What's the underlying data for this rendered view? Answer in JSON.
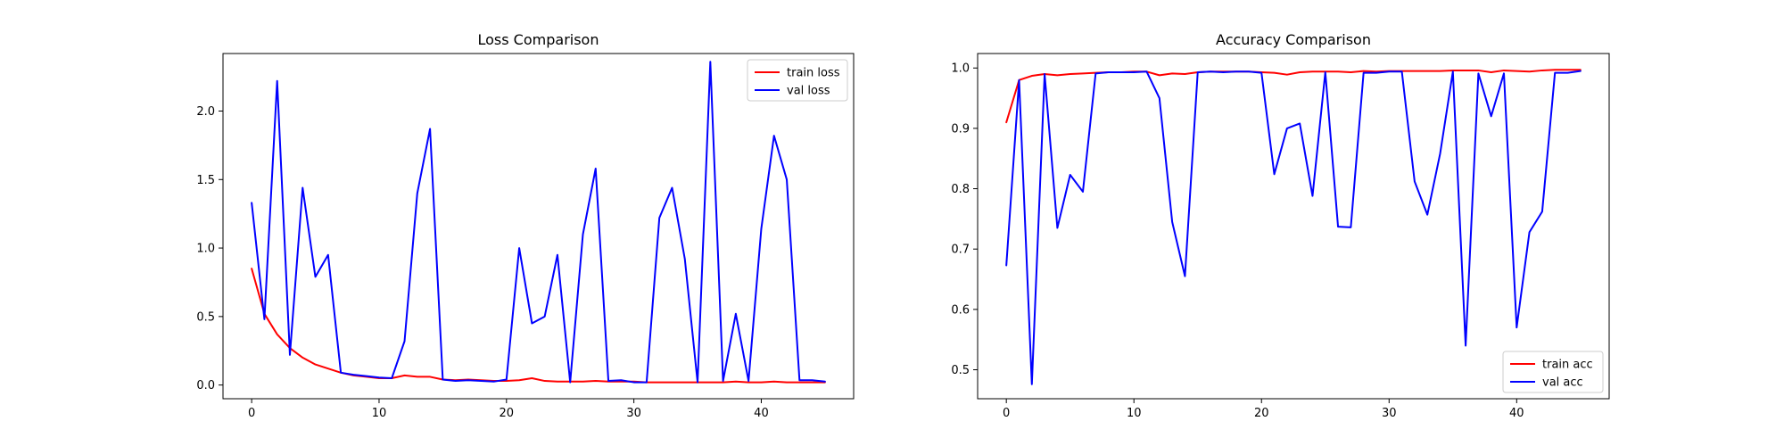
{
  "chart_data": [
    {
      "type": "line",
      "title": "Loss Comparison",
      "xlabel": "",
      "ylabel": "",
      "xlim": [
        -2.25,
        47.25
      ],
      "ylim": [
        -0.1,
        2.42
      ],
      "xticks": [
        0,
        10,
        20,
        30,
        40
      ],
      "yticks": [
        0.0,
        0.5,
        1.0,
        1.5,
        2.0
      ],
      "xtick_labels": [
        "0",
        "10",
        "20",
        "30",
        "40"
      ],
      "ytick_labels": [
        "0.0",
        "0.5",
        "1.0",
        "1.5",
        "2.0"
      ],
      "grid": false,
      "legend": "top-right",
      "series": [
        {
          "name": "train loss",
          "color": "#ff0000",
          "x": [
            0,
            1,
            2,
            3,
            4,
            5,
            6,
            7,
            8,
            9,
            10,
            11,
            12,
            13,
            14,
            15,
            16,
            17,
            18,
            19,
            20,
            21,
            22,
            23,
            24,
            25,
            26,
            27,
            28,
            29,
            30,
            31,
            32,
            33,
            34,
            35,
            36,
            37,
            38,
            39,
            40,
            41,
            42,
            43,
            44,
            45
          ],
          "values": [
            0.85,
            0.52,
            0.37,
            0.27,
            0.2,
            0.15,
            0.12,
            0.09,
            0.07,
            0.06,
            0.05,
            0.05,
            0.07,
            0.06,
            0.06,
            0.04,
            0.035,
            0.04,
            0.035,
            0.03,
            0.03,
            0.035,
            0.05,
            0.03,
            0.025,
            0.025,
            0.025,
            0.03,
            0.025,
            0.025,
            0.025,
            0.02,
            0.02,
            0.02,
            0.02,
            0.02,
            0.02,
            0.02,
            0.025,
            0.02,
            0.02,
            0.025,
            0.02,
            0.02,
            0.02,
            0.02
          ]
        },
        {
          "name": "val loss",
          "color": "#0000ff",
          "x": [
            0,
            1,
            2,
            3,
            4,
            5,
            6,
            7,
            8,
            9,
            10,
            11,
            12,
            13,
            14,
            15,
            16,
            17,
            18,
            19,
            20,
            21,
            22,
            23,
            24,
            25,
            26,
            27,
            28,
            29,
            30,
            31,
            32,
            33,
            34,
            35,
            36,
            37,
            38,
            39,
            40,
            41,
            42,
            43,
            44,
            45
          ],
          "values": [
            1.33,
            0.48,
            2.22,
            0.22,
            1.44,
            0.79,
            0.95,
            0.09,
            0.075,
            0.065,
            0.055,
            0.05,
            0.32,
            1.4,
            1.87,
            0.04,
            0.03,
            0.035,
            0.03,
            0.025,
            0.04,
            1.0,
            0.45,
            0.5,
            0.95,
            0.02,
            1.1,
            1.58,
            0.03,
            0.035,
            0.02,
            0.02,
            1.22,
            1.44,
            0.92,
            0.02,
            2.36,
            0.03,
            0.52,
            0.03,
            1.14,
            1.82,
            1.5,
            0.035,
            0.035,
            0.025
          ]
        }
      ]
    },
    {
      "type": "line",
      "title": "Accuracy Comparison",
      "xlabel": "",
      "ylabel": "",
      "xlim": [
        -2.25,
        47.25
      ],
      "ylim": [
        0.452,
        1.024
      ],
      "xticks": [
        0,
        10,
        20,
        30,
        40
      ],
      "yticks": [
        0.5,
        0.6,
        0.7,
        0.8,
        0.9,
        1.0
      ],
      "xtick_labels": [
        "0",
        "10",
        "20",
        "30",
        "40"
      ],
      "ytick_labels": [
        "0.5",
        "0.6",
        "0.7",
        "0.8",
        "0.9",
        "1.0"
      ],
      "grid": false,
      "legend": "bottom-right",
      "series": [
        {
          "name": "train acc",
          "color": "#ff0000",
          "x": [
            0,
            1,
            2,
            3,
            4,
            5,
            6,
            7,
            8,
            9,
            10,
            11,
            12,
            13,
            14,
            15,
            16,
            17,
            18,
            19,
            20,
            21,
            22,
            23,
            24,
            25,
            26,
            27,
            28,
            29,
            30,
            31,
            32,
            33,
            34,
            35,
            36,
            37,
            38,
            39,
            40,
            41,
            42,
            43,
            44,
            45
          ],
          "values": [
            0.91,
            0.98,
            0.987,
            0.99,
            0.988,
            0.99,
            0.991,
            0.992,
            0.993,
            0.993,
            0.994,
            0.994,
            0.988,
            0.991,
            0.99,
            0.993,
            0.994,
            0.994,
            0.994,
            0.994,
            0.993,
            0.992,
            0.989,
            0.993,
            0.994,
            0.994,
            0.994,
            0.993,
            0.995,
            0.994,
            0.995,
            0.995,
            0.995,
            0.995,
            0.995,
            0.996,
            0.996,
            0.996,
            0.993,
            0.996,
            0.995,
            0.994,
            0.996,
            0.997,
            0.997,
            0.997
          ]
        },
        {
          "name": "val acc",
          "color": "#0000ff",
          "x": [
            0,
            1,
            2,
            3,
            4,
            5,
            6,
            7,
            8,
            9,
            10,
            11,
            12,
            13,
            14,
            15,
            16,
            17,
            18,
            19,
            20,
            21,
            22,
            23,
            24,
            25,
            26,
            27,
            28,
            29,
            30,
            31,
            32,
            33,
            34,
            35,
            36,
            37,
            38,
            39,
            40,
            41,
            42,
            43,
            44,
            45
          ],
          "values": [
            0.673,
            0.98,
            0.476,
            0.99,
            0.735,
            0.823,
            0.795,
            0.991,
            0.993,
            0.993,
            0.993,
            0.994,
            0.95,
            0.745,
            0.655,
            0.993,
            0.994,
            0.993,
            0.994,
            0.994,
            0.992,
            0.824,
            0.9,
            0.908,
            0.788,
            0.993,
            0.737,
            0.736,
            0.992,
            0.992,
            0.994,
            0.994,
            0.812,
            0.757,
            0.858,
            0.994,
            0.54,
            0.991,
            0.92,
            0.991,
            0.57,
            0.728,
            0.762,
            0.992,
            0.992,
            0.995
          ]
        }
      ]
    }
  ]
}
